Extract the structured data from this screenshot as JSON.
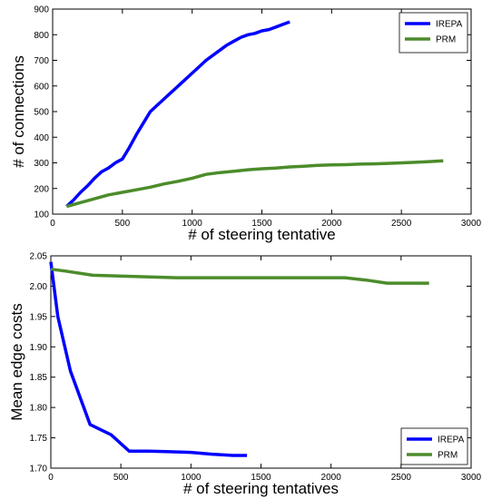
{
  "chart_data": [
    {
      "type": "line",
      "title": "",
      "xlabel": "# of steering tentative",
      "ylabel": "# of connections",
      "xlim": [
        0,
        3000
      ],
      "ylim": [
        100,
        900
      ],
      "xticks": [
        0,
        500,
        1000,
        1500,
        2000,
        2500,
        3000
      ],
      "yticks": [
        100,
        200,
        300,
        400,
        500,
        600,
        700,
        800,
        900
      ],
      "grid": false,
      "legend": "top-right",
      "series": [
        {
          "name": "IREPA",
          "color": "#0000ff",
          "x": [
            100,
            150,
            200,
            250,
            300,
            350,
            400,
            450,
            500,
            550,
            600,
            650,
            700,
            750,
            800,
            850,
            900,
            950,
            1000,
            1050,
            1100,
            1150,
            1200,
            1250,
            1300,
            1350,
            1400,
            1450,
            1500,
            1550,
            1600,
            1650,
            1700
          ],
          "y": [
            130,
            155,
            185,
            210,
            240,
            265,
            280,
            300,
            315,
            360,
            410,
            455,
            500,
            525,
            550,
            575,
            600,
            625,
            650,
            675,
            700,
            720,
            740,
            760,
            775,
            790,
            800,
            805,
            815,
            820,
            830,
            840,
            850
          ]
        },
        {
          "name": "PRM",
          "color": "#4c8c2b",
          "x": [
            100,
            200,
            300,
            400,
            500,
            600,
            700,
            800,
            900,
            1000,
            1100,
            1200,
            1300,
            1400,
            1500,
            1600,
            1700,
            1800,
            1900,
            2000,
            2100,
            2200,
            2300,
            2400,
            2500,
            2600,
            2700,
            2800
          ],
          "y": [
            130,
            145,
            160,
            175,
            185,
            195,
            205,
            218,
            228,
            240,
            255,
            262,
            267,
            273,
            277,
            280,
            284,
            287,
            290,
            292,
            293,
            295,
            296,
            298,
            300,
            302,
            305,
            308
          ]
        }
      ]
    },
    {
      "type": "line",
      "title": "",
      "xlabel": "# of steering tentatives",
      "ylabel": "Mean edge costs",
      "xlim": [
        0,
        3000
      ],
      "ylim": [
        1.7,
        2.05
      ],
      "xticks": [
        0,
        500,
        1000,
        1500,
        2000,
        2500,
        3000
      ],
      "yticks": [
        "1.70",
        "1.75",
        "1.80",
        "1.85",
        "1.90",
        "1.95",
        "2.00",
        "2.05"
      ],
      "grid": false,
      "legend": "bottom-right",
      "series": [
        {
          "name": "IREPA",
          "color": "#0000ff",
          "x": [
            0,
            50,
            140,
            280,
            430,
            560,
            700,
            850,
            1000,
            1150,
            1300,
            1400
          ],
          "y": [
            2.04,
            1.95,
            1.86,
            1.772,
            1.755,
            1.728,
            1.728,
            1.727,
            1.726,
            1.723,
            1.721,
            1.721
          ]
        },
        {
          "name": "PRM",
          "color": "#4c8c2b",
          "x": [
            0,
            100,
            300,
            600,
            900,
            1200,
            1500,
            1800,
            2100,
            2250,
            2400,
            2700
          ],
          "y": [
            2.028,
            2.025,
            2.018,
            2.016,
            2.014,
            2.014,
            2.014,
            2.014,
            2.014,
            2.01,
            2.005,
            2.005
          ]
        }
      ]
    }
  ]
}
